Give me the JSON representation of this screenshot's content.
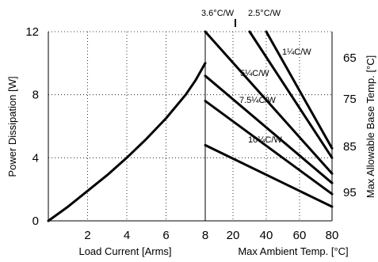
{
  "chart_data": {
    "type": "line",
    "title": "",
    "grid": true,
    "left_panel": {
      "xlabel": "Load Current  [Arms]",
      "ylabel": "Power Dissipation [W]",
      "xlim": [
        0,
        8
      ],
      "ylim": [
        0,
        12
      ],
      "x_ticks": [
        2,
        4,
        6,
        8
      ],
      "y_ticks": [
        0,
        4,
        8,
        12
      ],
      "series": [
        {
          "x": [
            0,
            1,
            2,
            3,
            4,
            5,
            6,
            7,
            7.5,
            8
          ],
          "y": [
            0,
            0.9,
            1.9,
            2.9,
            4.0,
            5.2,
            6.5,
            8.0,
            8.9,
            10.0
          ]
        }
      ]
    },
    "right_panel": {
      "xlabel": "Max Ambient Temp. [°C]",
      "y2label": "Max Allowable Base Temp. [°C]",
      "xlim": [
        8,
        80
      ],
      "x_ticks": [
        8,
        20,
        40,
        60,
        80
      ],
      "y2_ticks": [
        "65",
        "75",
        "85",
        "95"
      ],
      "series": [
        {
          "name": "1¼C/W",
          "x": [
            40,
            80
          ],
          "y": [
            12,
            4.6
          ]
        },
        {
          "name": "2.5°C/W",
          "x": [
            30,
            80
          ],
          "y": [
            12,
            4.0
          ]
        },
        {
          "name": "3.6°C/W",
          "x": [
            8,
            80
          ],
          "y": [
            12,
            3.0
          ]
        },
        {
          "name": "5¼C/W",
          "x": [
            8,
            80
          ],
          "y": [
            9.2,
            2.4
          ]
        },
        {
          "name": "7.5¼C/W",
          "x": [
            8,
            80
          ],
          "y": [
            7.6,
            1.7
          ]
        },
        {
          "name": "10¼C/W",
          "x": [
            8,
            80
          ],
          "y": [
            4.8,
            0.9
          ]
        }
      ]
    },
    "annotations": [
      "3.6°C/W",
      "2.5°C/W",
      "1¼C/W",
      "5¼C/W",
      "7.5¼C/W",
      "10¼C/W"
    ]
  }
}
